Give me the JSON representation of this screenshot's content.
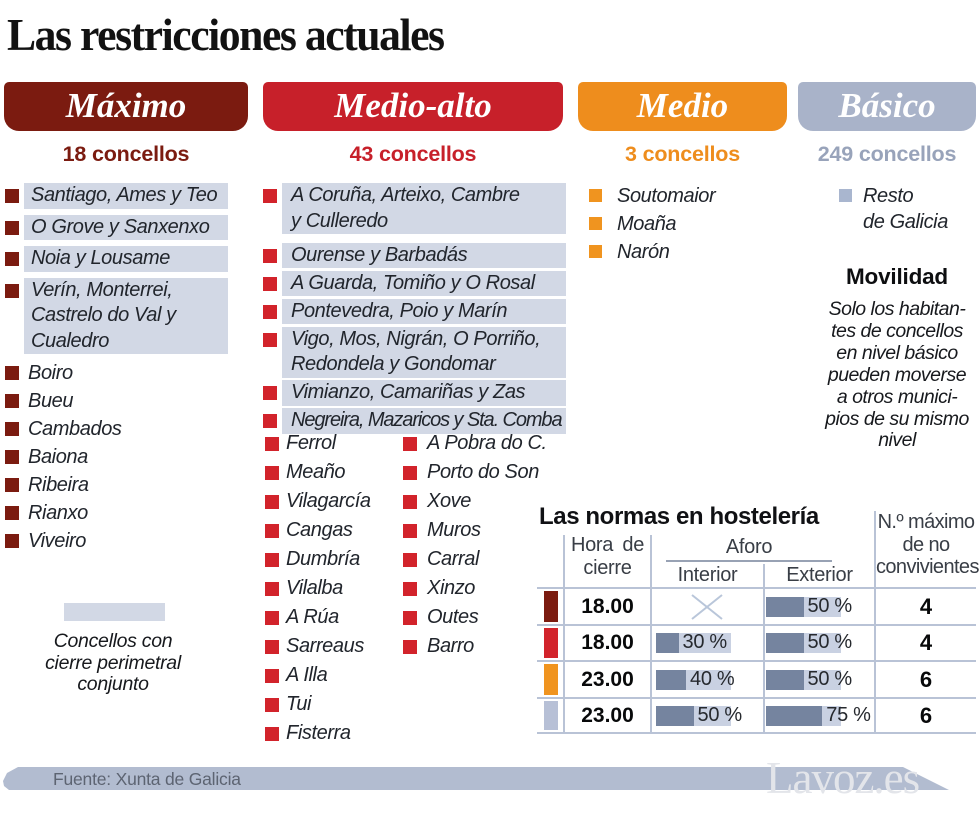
{
  "title": "Las restricciones actuales",
  "levels": [
    {
      "name": "Máximo",
      "count": "18 concellos",
      "header_color": "#7b1b10",
      "count_color": "#7b1b10",
      "bullet_color": "#7b1b10",
      "grouped_items": [
        {
          "lines": [
            "Santiago, Ames y Teo"
          ]
        },
        {
          "lines": [
            "O Grove y Sanxenxo"
          ]
        },
        {
          "lines": [
            "Noia y Lousame"
          ]
        },
        {
          "lines": [
            "Verín, Monterrei,",
            "Castrelo do Val y",
            "Cualedro"
          ]
        }
      ],
      "single_items": [
        "Boiro",
        "Bueu",
        "Cambados",
        "Baiona",
        "Ribeira",
        "Rianxo",
        "Viveiro"
      ]
    },
    {
      "name": "Medio-alto",
      "count": "43 concellos",
      "header_color": "#c7202a",
      "count_color": "#c7202a",
      "bullet_color": "#d2232b",
      "grouped_items": [
        {
          "lines": [
            "A Coruña, Arteixo, Cambre",
            "y Culleredo"
          ]
        },
        {
          "lines": [
            "Ourense y Barbadás"
          ]
        },
        {
          "lines": [
            "A Guarda, Tomiño y O Rosal"
          ]
        },
        {
          "lines": [
            "Pontevedra, Poio y Marín"
          ]
        },
        {
          "lines": [
            "Vigo, Mos, Nigrán, O Porriño,",
            "Redondela y Gondomar"
          ]
        },
        {
          "lines": [
            "Vimianzo, Camariñas y Zas"
          ]
        },
        {
          "lines": [
            "Negreira, Mazaricos y Sta. Comba"
          ],
          "condensed": true
        }
      ],
      "single_items_left": [
        "Ferrol",
        "Meaño",
        "Vilagarcía",
        "Cangas",
        "Dumbría",
        "Vilalba",
        "A Rúa",
        "Sarreaus",
        "A Illa",
        "Tui",
        "Fisterra"
      ],
      "single_items_right": [
        "A Pobra do C.",
        "Porto do Son",
        "Xove",
        "Muros",
        "Carral",
        "Xinzo",
        "Outes",
        "Barro"
      ]
    },
    {
      "name": "Medio",
      "count": "3 concellos",
      "header_color": "#ee8d1d",
      "count_color": "#ee8d1d",
      "bullet_color": "#f0941f",
      "single_items": [
        "Soutomaior",
        "Moaña",
        "Narón"
      ]
    },
    {
      "name": "Básico",
      "count": "249 concellos",
      "header_color": "#a9b3c9",
      "count_color": "#98a3ba",
      "bullet_color": "#a9b6cf",
      "grouped_items": [
        {
          "lines": [
            "Resto",
            "de Galicia"
          ],
          "plain": true
        }
      ]
    }
  ],
  "legend": {
    "swatch_color": "#d2d8e5",
    "lines": [
      "Concellos con",
      "cierre perimetral",
      "conjunto"
    ]
  },
  "movilidad": {
    "title": "Movilidad",
    "lines": [
      "Solo los habitan-",
      "tes de concellos",
      "en nivel básico",
      "pueden moverse",
      "a otros munici-",
      "pios de su mismo",
      "nivel"
    ]
  },
  "table": {
    "title": "Las normas en hostelería",
    "headers": {
      "hora_lines": [
        "Hora  de",
        "cierre"
      ],
      "aforo": "Aforo",
      "interior": "Interior",
      "exterior": "Exterior",
      "max_lines": [
        "N.º máximo",
        "de no",
        "convivientes"
      ]
    },
    "bar_fill_color": "#75849f",
    "bar_track_color": "#c9d1e2",
    "no_data_color": "#b9c6da",
    "rows": [
      {
        "swatch": "#7b1b10",
        "hora": "18.00",
        "interior_pct": null,
        "exterior_pct": 50,
        "max": "4"
      },
      {
        "swatch": "#d2232b",
        "hora": "18.00",
        "interior_pct": 30,
        "exterior_pct": 50,
        "max": "4"
      },
      {
        "swatch": "#f0941f",
        "hora": "23.00",
        "interior_pct": 40,
        "exterior_pct": 50,
        "max": "6"
      },
      {
        "swatch": "#b7c0d6",
        "hora": "23.00",
        "interior_pct": 50,
        "exterior_pct": 75,
        "max": "6"
      }
    ],
    "pct_labels": {
      "30": "30 %",
      "40": "40 %",
      "50": "50 %",
      "75": "75 %"
    }
  },
  "footer": {
    "source": "Fuente: Xunta de Galicia",
    "watermark": "Lavoz.es"
  }
}
